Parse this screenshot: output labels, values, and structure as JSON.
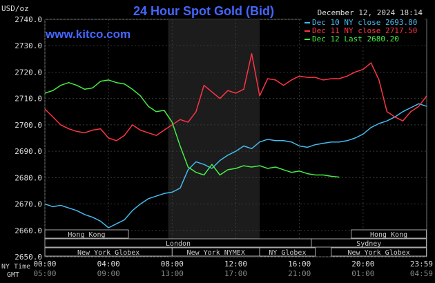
{
  "chart_data": {
    "type": "line",
    "title": "24 Hour Spot Gold (Bid)",
    "unit_label": "USD/oz",
    "source": "www.kitco.com",
    "date_stamp": "December 12, 2024 18:14",
    "ylim": [
      2650,
      2740
    ],
    "y_ticks": [
      "2740.0",
      "2730.0",
      "2720.0",
      "2710.0",
      "2700.0",
      "2690.0",
      "2680.0",
      "2670.0",
      "2660.0",
      "2650.0"
    ],
    "y_tick_values": [
      2740,
      2730,
      2720,
      2710,
      2700,
      2690,
      2680,
      2670,
      2660,
      2650
    ],
    "xlim": [
      0,
      24
    ],
    "x_ny_ticks": [
      "00:00",
      "04:00",
      "08:00",
      "12:00",
      "16:00",
      "20:00",
      "23:59"
    ],
    "x_gmt_ticks": [
      "05:00",
      "09:00",
      "13:00",
      "17:00",
      "21:00",
      "01:00",
      "04:59"
    ],
    "x_tick_hours": [
      0,
      4,
      8,
      12,
      16,
      20,
      23.98
    ],
    "x_row_labels": [
      "NY Time",
      "GMT"
    ],
    "grid": true,
    "legend_position": "top-right",
    "shaded_hours": [
      7.75,
      13.5
    ],
    "market_bars": [
      {
        "label": "Hong Kong",
        "start": 0.0,
        "end": 5.25
      },
      {
        "label": "Hong Kong",
        "start": 19.25,
        "end": 23.98
      },
      {
        "label": "London",
        "start": 0.0,
        "end": 16.75
      },
      {
        "label": "Sydney",
        "start": 16.75,
        "end": 23.98
      },
      {
        "label": "New York Globex",
        "start": 0.0,
        "end": 8.0
      },
      {
        "label": "New York NYMEX",
        "start": 8.0,
        "end": 13.5
      },
      {
        "label": "NY Globex",
        "start": 13.5,
        "end": 17.0
      },
      {
        "label": "New York Globex",
        "start": 18.0,
        "end": 23.98
      }
    ],
    "series": [
      {
        "name": "Dec 10 NY close 2693.80",
        "color": "#44bbee",
        "x": [
          0,
          0.5,
          1,
          1.5,
          2,
          2.5,
          3,
          3.5,
          4,
          4.5,
          5,
          5.5,
          6,
          6.5,
          7,
          7.5,
          8,
          8.5,
          9,
          9.5,
          10,
          10.5,
          11,
          11.5,
          12,
          12.5,
          13,
          13.5,
          14,
          14.5,
          15,
          15.5,
          16,
          16.5,
          17,
          17.5,
          18,
          18.5,
          19,
          19.5,
          20,
          20.5,
          21,
          21.5,
          22,
          22.5,
          23,
          23.5,
          24
        ],
        "values": [
          2670,
          2669,
          2669.5,
          2668.5,
          2667.5,
          2666,
          2665,
          2663.5,
          2661,
          2662.5,
          2664,
          2667.5,
          2670,
          2672,
          2673,
          2674,
          2674.5,
          2676,
          2683,
          2686,
          2685,
          2683.5,
          2686.5,
          2688.5,
          2690,
          2692,
          2691,
          2693.5,
          2694.5,
          2694,
          2694,
          2693.5,
          2692,
          2691.5,
          2692.5,
          2693,
          2693.5,
          2693.5,
          2694,
          2695,
          2696.5,
          2699,
          2700.5,
          2701.5,
          2703,
          2705,
          2706.5,
          2708,
          2707
        ]
      },
      {
        "name": "Dec 11 NY close 2717.50",
        "color": "#ff3344",
        "x": [
          0,
          0.5,
          1,
          1.5,
          2,
          2.5,
          3,
          3.5,
          4,
          4.5,
          5,
          5.5,
          6,
          6.5,
          7,
          7.5,
          8,
          8.5,
          9,
          9.5,
          10,
          10.5,
          11,
          11.5,
          12,
          12.5,
          13,
          13.5,
          14,
          14.5,
          15,
          15.5,
          16,
          16.5,
          17,
          17.5,
          18,
          18.5,
          19,
          19.5,
          20,
          20.5,
          21,
          21.5,
          22,
          22.5,
          23,
          23.5,
          24
        ],
        "values": [
          2706,
          2703,
          2700,
          2698.5,
          2697.5,
          2697,
          2698,
          2698.5,
          2695,
          2694,
          2696,
          2700,
          2698,
          2697,
          2696,
          2698,
          2700,
          2702,
          2701,
          2705,
          2715,
          2712.5,
          2710,
          2713,
          2712,
          2713.5,
          2727,
          2711,
          2717.5,
          2717,
          2715,
          2717,
          2718.5,
          2718,
          2718,
          2717,
          2717.5,
          2717.5,
          2718.5,
          2720,
          2721,
          2723.5,
          2717,
          2705,
          2703,
          2701.5,
          2705,
          2707,
          2711
        ]
      },
      {
        "name": "Dec 12 Last 2680.20",
        "color": "#44ee44",
        "x": [
          0,
          0.5,
          1,
          1.5,
          2,
          2.5,
          3,
          3.5,
          4,
          4.5,
          5,
          5.5,
          6,
          6.5,
          7,
          7.5,
          8,
          8.5,
          9,
          9.5,
          10,
          10.5,
          11,
          11.5,
          12,
          12.5,
          13,
          13.5,
          14,
          14.5,
          15,
          15.5,
          16,
          16.5,
          17,
          17.5,
          18,
          18.5
        ],
        "values": [
          2712,
          2713,
          2715,
          2716,
          2715,
          2713.5,
          2714,
          2716.5,
          2717,
          2716,
          2715.5,
          2713.5,
          2711,
          2707,
          2705,
          2705.5,
          2701,
          2692,
          2684,
          2682,
          2681,
          2685,
          2681,
          2683,
          2683.5,
          2684.5,
          2684,
          2684.5,
          2683.5,
          2684,
          2683,
          2682,
          2682.5,
          2681.5,
          2681,
          2681,
          2680.5,
          2680.2
        ]
      }
    ]
  }
}
